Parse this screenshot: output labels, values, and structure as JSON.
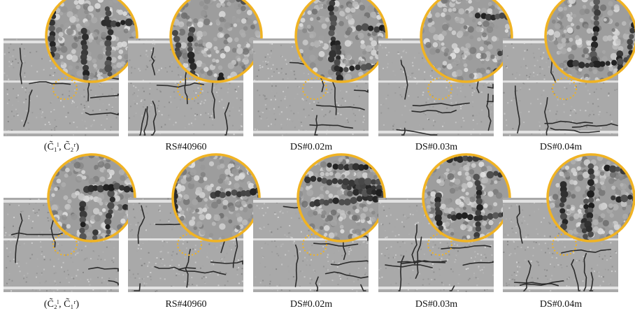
{
  "figure": {
    "rows": [
      {
        "captions": [
          "(C̃₁ˡ, C̃₂ʳ)",
          "RS#40960",
          "DS#0.02m",
          "DS#0.03m",
          "DS#0.04m"
        ]
      },
      {
        "captions": [
          "(C̃₂ˡ, C̃₁ʳ)",
          "RS#40960",
          "DS#0.02m",
          "DS#0.03m",
          "DS#0.04m"
        ]
      }
    ]
  },
  "colors": {
    "magnifier_ring": "#f0b323",
    "roi_dotted_circle": "#f0b323",
    "road_gray": "#a9a9a9",
    "lane_line": "#e2e2e2",
    "crack": "#2b2b2b"
  }
}
